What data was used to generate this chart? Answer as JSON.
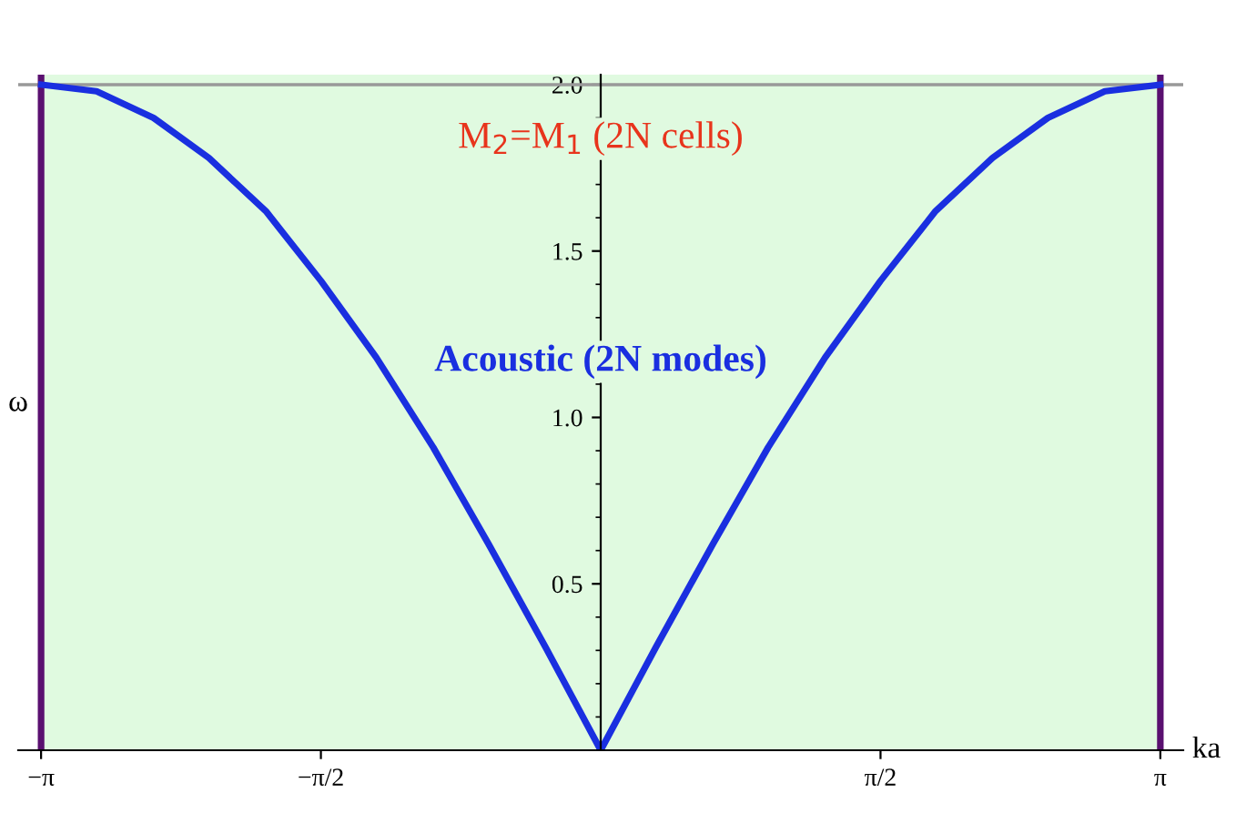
{
  "chart_data": {
    "type": "line",
    "xlabel": "ka",
    "ylabel": "ω",
    "xlim": [
      -3.27,
      3.27
    ],
    "ylim": [
      0,
      2.03
    ],
    "xticks": [
      {
        "value": -3.14159,
        "label": "−π"
      },
      {
        "value": -1.5708,
        "label": "−π/2"
      },
      {
        "value": 1.5708,
        "label": "π/2"
      },
      {
        "value": 3.14159,
        "label": "π"
      }
    ],
    "yticks": [
      {
        "value": 0.5,
        "label": "0.5"
      },
      {
        "value": 1.0,
        "label": "1.0"
      },
      {
        "value": 1.5,
        "label": "1.5"
      },
      {
        "value": 2.0,
        "label": "2.0"
      }
    ],
    "series": [
      {
        "color": "#1a2fe0",
        "x": [
          -3.14,
          -2.83,
          -2.51,
          -2.2,
          -1.88,
          -1.57,
          -1.26,
          -0.94,
          -0.63,
          -0.31,
          0,
          0.31,
          0.63,
          0.94,
          1.26,
          1.57,
          1.88,
          2.2,
          2.51,
          2.83,
          3.14
        ],
        "values": [
          2.0,
          1.98,
          1.9,
          1.78,
          1.62,
          1.41,
          1.18,
          0.91,
          0.62,
          0.31,
          0,
          0.31,
          0.62,
          0.91,
          1.18,
          1.41,
          1.62,
          1.78,
          1.9,
          1.98,
          2.0
        ]
      }
    ],
    "bands": [
      {
        "axis": "x",
        "from": -3.14159,
        "to": 3.14159,
        "color": "#e0fae0"
      }
    ],
    "ref_lines": [
      {
        "axis": "y",
        "value": 2,
        "color": "#999999"
      },
      {
        "axis": "x",
        "value": -3.14159,
        "color": "#5a1070"
      },
      {
        "axis": "x",
        "value": 3.14159,
        "color": "#5a1070"
      }
    ],
    "annotations": [
      "M$_{2}$=M$_{1}$ (2N cells)",
      "Acoustic (2N modes)"
    ],
    "legend": false,
    "marker": "none",
    "line_style": "solid"
  }
}
